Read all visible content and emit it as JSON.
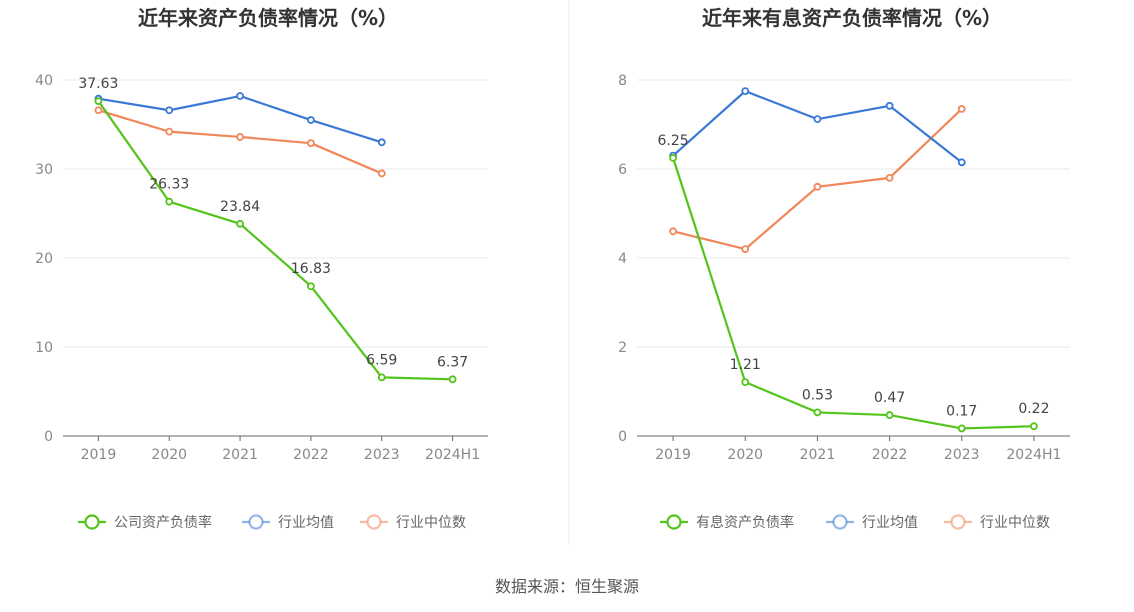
{
  "source_text": "数据来源：恒生聚源",
  "chart_data": [
    {
      "type": "line",
      "title": "近年来资产负债率情况（%）",
      "categories": [
        "2019",
        "2020",
        "2021",
        "2022",
        "2023",
        "2024H1"
      ],
      "ylim": [
        0,
        40
      ],
      "yticks": [
        0,
        10,
        20,
        30,
        40
      ],
      "grid": true,
      "legend_position": "bottom",
      "series": [
        {
          "name": "公司资产负债率",
          "color": "#52c41a",
          "values": [
            37.63,
            26.33,
            23.84,
            16.83,
            6.59,
            6.37
          ],
          "labels": [
            "37.63",
            "26.33",
            "23.84",
            "16.83",
            "6.59",
            "6.37"
          ]
        },
        {
          "name": "行业均值",
          "color": "#3a78d6",
          "values": [
            37.9,
            36.6,
            38.2,
            35.5,
            33.0,
            null
          ],
          "labels": []
        },
        {
          "name": "行业中位数",
          "color": "#f0875a",
          "values": [
            36.6,
            34.2,
            33.6,
            32.9,
            29.5,
            null
          ],
          "labels": []
        }
      ]
    },
    {
      "type": "line",
      "title": "近年来有息资产负债率情况（%）",
      "categories": [
        "2019",
        "2020",
        "2021",
        "2022",
        "2023",
        "2024H1"
      ],
      "ylim": [
        0,
        8
      ],
      "yticks": [
        0,
        2,
        4,
        6,
        8
      ],
      "grid": true,
      "legend_position": "bottom",
      "series": [
        {
          "name": "有息资产负债率",
          "color": "#52c41a",
          "values": [
            6.25,
            1.21,
            0.53,
            0.47,
            0.17,
            0.22
          ],
          "labels": [
            "6.25",
            "1.21",
            "0.53",
            "0.47",
            "0.17",
            "0.22"
          ]
        },
        {
          "name": "行业均值",
          "color": "#3a78d6",
          "values": [
            6.3,
            7.75,
            7.12,
            7.42,
            6.15,
            null
          ],
          "labels": []
        },
        {
          "name": "行业中位数",
          "color": "#f0875a",
          "values": [
            4.6,
            4.2,
            5.6,
            5.8,
            7.35,
            null
          ],
          "labels": []
        }
      ]
    }
  ]
}
